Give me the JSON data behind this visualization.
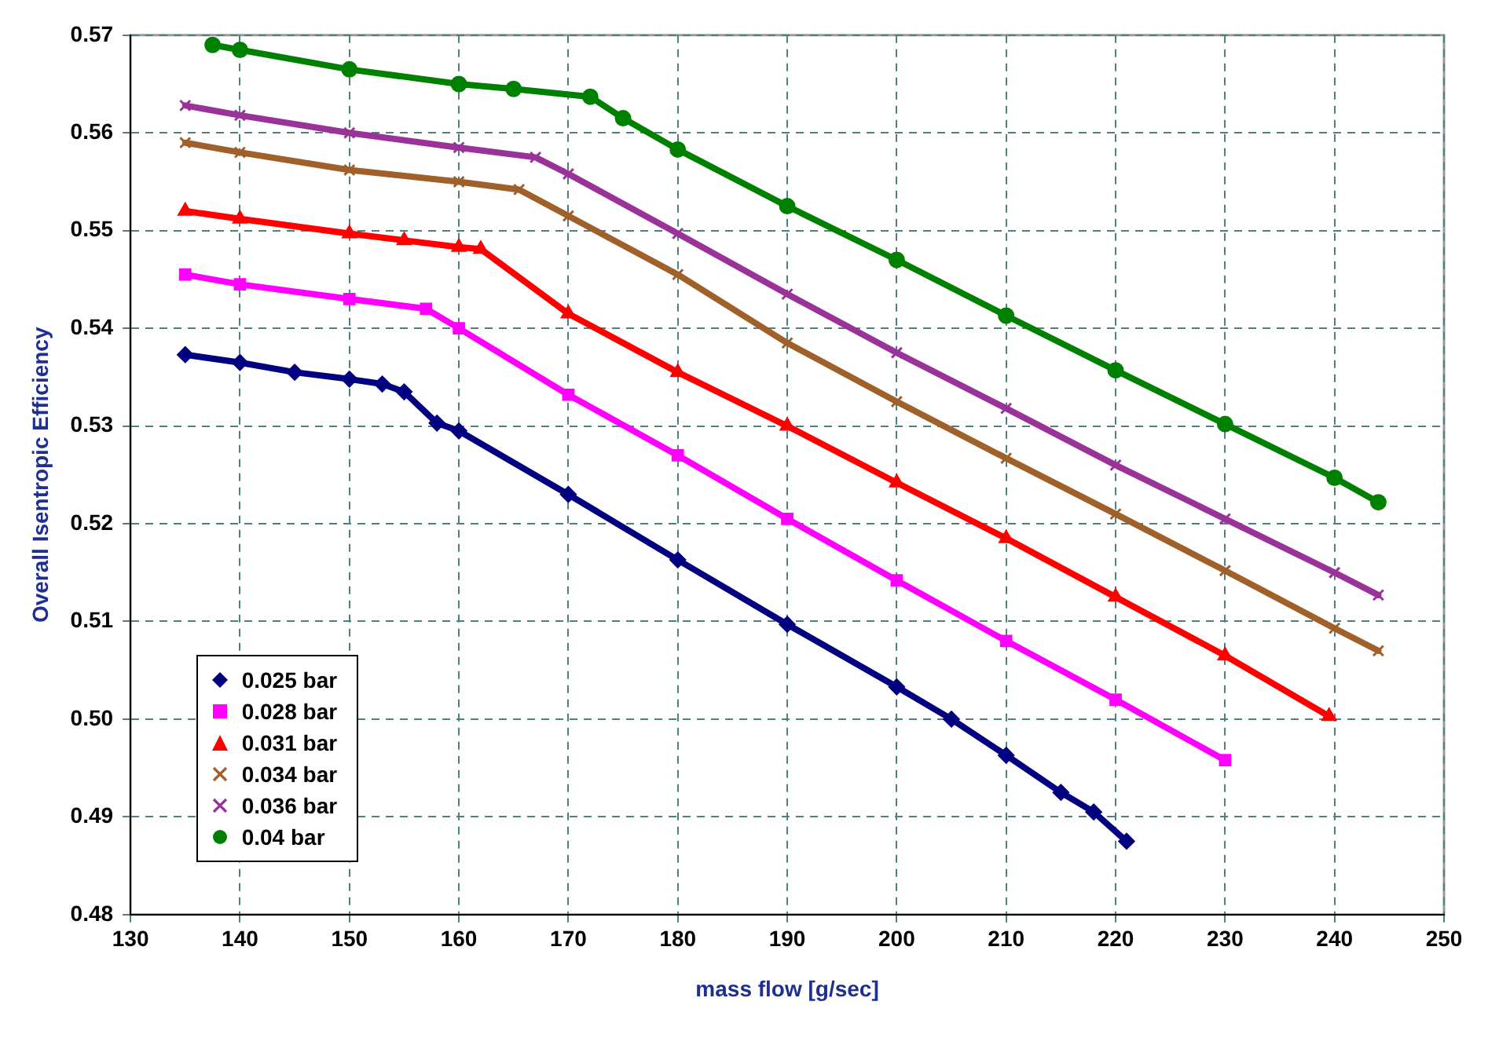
{
  "chart_data": {
    "type": "line",
    "xlabel": "mass flow [g/sec]",
    "ylabel": "Overall Isentropic Efficiency",
    "xlim": [
      130,
      250
    ],
    "xticks": [
      130,
      140,
      150,
      160,
      170,
      180,
      190,
      200,
      210,
      220,
      230,
      240,
      250
    ],
    "ylim": [
      0.48,
      0.57
    ],
    "yticks": [
      {
        "value": 0.48,
        "label": "0.48"
      },
      {
        "value": 0.49,
        "label": "0.49"
      },
      {
        "value": 0.5,
        "label": "0.50"
      },
      {
        "value": 0.51,
        "label": "0.51"
      },
      {
        "value": 0.52,
        "label": "0.52"
      },
      {
        "value": 0.53,
        "label": "0.53"
      },
      {
        "value": 0.54,
        "label": "0.54"
      },
      {
        "value": 0.55,
        "label": "0.55"
      },
      {
        "value": 0.56,
        "label": "0.56"
      },
      {
        "value": 0.57,
        "label": "0.57"
      }
    ],
    "grid": true,
    "legend": "bottom left",
    "series": [
      {
        "name": "0.025 bar",
        "color": "#000080",
        "marker": "diamond",
        "x": [
          135,
          140,
          145,
          150,
          153,
          155,
          158,
          160,
          170,
          180,
          190,
          200,
          205,
          210,
          215,
          218,
          221
        ],
        "values": [
          0.5373,
          0.5365,
          0.5355,
          0.5348,
          0.5343,
          0.5335,
          0.5303,
          0.5295,
          0.523,
          0.5163,
          0.5097,
          0.5033,
          0.5,
          0.4963,
          0.4925,
          0.4905,
          0.4875
        ]
      },
      {
        "name": "0.028 bar",
        "color": "#ff00ff",
        "marker": "square",
        "x": [
          135,
          140,
          150,
          157,
          160,
          170,
          180,
          190,
          200,
          210,
          220,
          230
        ],
        "values": [
          0.5455,
          0.5445,
          0.543,
          0.542,
          0.54,
          0.5332,
          0.527,
          0.5205,
          0.5142,
          0.508,
          0.502,
          0.4958
        ]
      },
      {
        "name": "0.031 bar",
        "color": "#ff0000",
        "marker": "triangle",
        "x": [
          135,
          140,
          150,
          155,
          160,
          162,
          170,
          180,
          190,
          200,
          210,
          220,
          230,
          239.5
        ],
        "values": [
          0.552,
          0.5512,
          0.5497,
          0.549,
          0.5483,
          0.5481,
          0.5415,
          0.5355,
          0.53,
          0.5242,
          0.5185,
          0.5125,
          0.5065,
          0.5003
        ]
      },
      {
        "name": "0.034 bar",
        "color": "#a0602a",
        "marker": "cross",
        "x": [
          135,
          140,
          150,
          160,
          165.5,
          170,
          180,
          190,
          200,
          210,
          220,
          230,
          240,
          244
        ],
        "values": [
          0.559,
          0.558,
          0.5562,
          0.555,
          0.5542,
          0.5515,
          0.5455,
          0.5385,
          0.5325,
          0.5267,
          0.521,
          0.5152,
          0.5093,
          0.507
        ]
      },
      {
        "name": "0.036 bar",
        "color": "#993399",
        "marker": "cross",
        "x": [
          135,
          140,
          150,
          160,
          167,
          170,
          180,
          190,
          200,
          210,
          220,
          230,
          240,
          244
        ],
        "values": [
          0.5628,
          0.5618,
          0.56,
          0.5585,
          0.5575,
          0.5558,
          0.5497,
          0.5435,
          0.5375,
          0.5318,
          0.526,
          0.5205,
          0.515,
          0.5127
        ]
      },
      {
        "name": "0.04 bar",
        "color": "#008000",
        "marker": "circle",
        "x": [
          137.5,
          140,
          150,
          160,
          165,
          172,
          175,
          180,
          190,
          200,
          210,
          220,
          230,
          240,
          244
        ],
        "values": [
          0.569,
          0.5685,
          0.5665,
          0.565,
          0.5645,
          0.5637,
          0.5615,
          0.5583,
          0.5525,
          0.547,
          0.5413,
          0.5357,
          0.5302,
          0.5247,
          0.5222
        ]
      }
    ]
  }
}
